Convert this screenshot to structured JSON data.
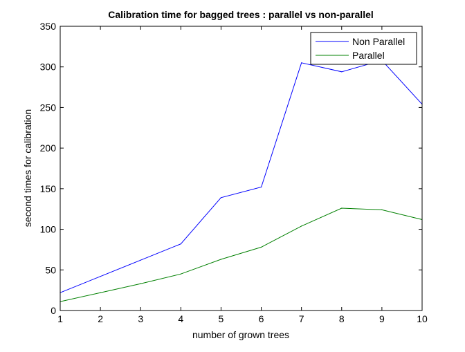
{
  "chart_data": {
    "type": "line",
    "title": "Calibration time for bagged trees : parallel vs non-parallel",
    "xlabel": "number of grown trees",
    "ylabel": "second times for calibration",
    "x": [
      1,
      2,
      3,
      4,
      5,
      6,
      7,
      8,
      9,
      10
    ],
    "xlim": [
      1,
      10
    ],
    "ylim": [
      0,
      350
    ],
    "xticks": [
      1,
      2,
      3,
      4,
      5,
      6,
      7,
      8,
      9,
      10
    ],
    "yticks": [
      0,
      50,
      100,
      150,
      200,
      250,
      300,
      350
    ],
    "grid": false,
    "legend_position": "top-right",
    "series": [
      {
        "name": "Non Parallel",
        "color": "#0000ff",
        "values": [
          22,
          42,
          62,
          82,
          139,
          152,
          305,
          294,
          308,
          254
        ]
      },
      {
        "name": "Parallel",
        "color": "#008000",
        "values": [
          11,
          22,
          33,
          45,
          63,
          78,
          104,
          126,
          124,
          112
        ]
      }
    ]
  }
}
